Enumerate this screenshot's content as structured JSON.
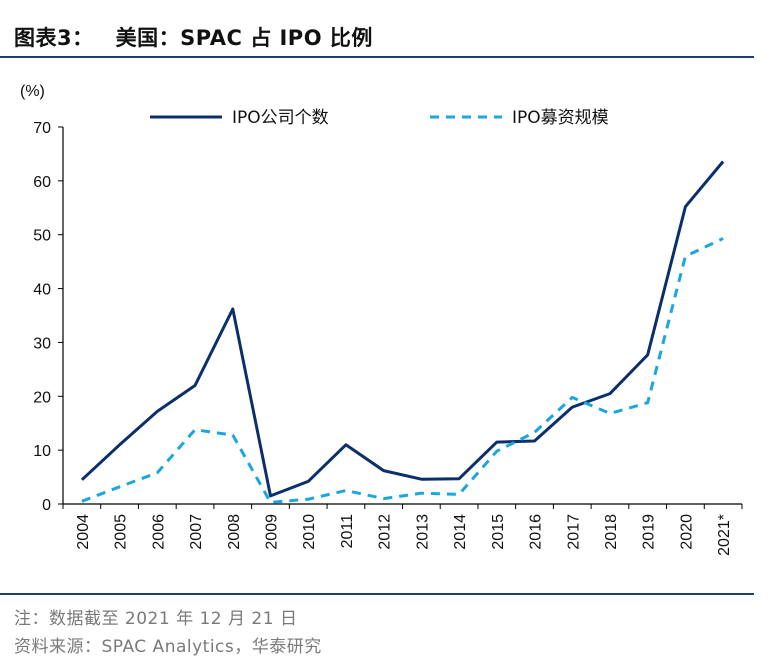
{
  "header": {
    "figure_label": "图表3：",
    "title": "美国：SPAC 占 IPO 比例"
  },
  "footer": {
    "note": "注：数据截至 2021 年 12 月 21 日",
    "source": "资料来源：SPAC Analytics，华泰研究"
  },
  "colors": {
    "series_1": "#0b2f6b",
    "series_2": "#1ba6e0",
    "rule": "#1f3f73"
  },
  "chart_data": {
    "type": "line",
    "title": "美国：SPAC 占 IPO 比例",
    "ylabel": "(%)",
    "xlabel": "",
    "ylim": [
      0,
      70
    ],
    "yticks": [
      0,
      10,
      20,
      30,
      40,
      50,
      60,
      70
    ],
    "categories": [
      "2004",
      "2005",
      "2006",
      "2007",
      "2008",
      "2009",
      "2010",
      "2011",
      "2012",
      "2013",
      "2014",
      "2015",
      "2016",
      "2017",
      "2018",
      "2019",
      "2020",
      "2021*"
    ],
    "series": [
      {
        "name": "IPO公司个数",
        "style": "solid",
        "values": [
          4.5,
          11,
          17.2,
          22,
          36.2,
          1.5,
          4.2,
          11,
          6.2,
          4.6,
          4.7,
          11.5,
          11.7,
          18,
          20.5,
          27.7,
          55.2,
          63.6
        ]
      },
      {
        "name": "IPO募资规模",
        "style": "dashed",
        "values": [
          0.5,
          3.2,
          5.8,
          13.8,
          12.8,
          0.3,
          0.9,
          2.5,
          1,
          2,
          1.8,
          9.8,
          13.3,
          19.8,
          16.8,
          18.8,
          46,
          49.3
        ]
      }
    ],
    "legend": "top",
    "grid": false
  }
}
